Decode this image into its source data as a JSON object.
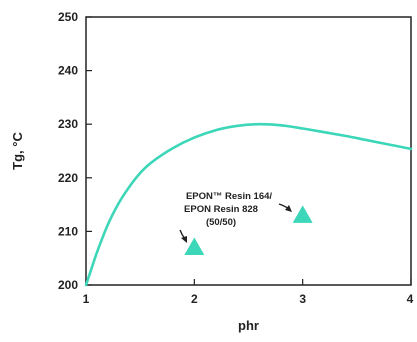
{
  "chart_data": {
    "type": "line",
    "xlabel": "phr",
    "ylabel": "Tg, °C",
    "xlim": [
      1,
      4
    ],
    "ylim": [
      200,
      250
    ],
    "x_ticks": [
      1,
      2,
      3,
      4
    ],
    "y_ticks": [
      200,
      210,
      220,
      230,
      240,
      250
    ],
    "grid": false,
    "colors": {
      "curve": "#3cd6b8",
      "marker": "#3cd6b8",
      "axis": "#222222"
    },
    "series": [
      {
        "type": "line",
        "x": [
          1.0,
          1.05,
          1.1,
          1.2,
          1.3,
          1.4,
          1.5,
          1.6,
          1.8,
          2.0,
          2.2,
          2.4,
          2.6,
          2.8,
          3.0,
          3.2,
          3.4,
          3.6,
          3.8,
          4.0
        ],
        "y": [
          200.0,
          203.0,
          206.0,
          211.2,
          215.2,
          218.3,
          220.9,
          222.8,
          225.5,
          227.5,
          228.9,
          229.7,
          230.0,
          229.8,
          229.2,
          228.5,
          227.8,
          227.0,
          226.2,
          225.4
        ]
      },
      {
        "type": "scatter",
        "marker": "triangle",
        "x": [
          2.0,
          3.0
        ],
        "y": [
          207.0,
          213.0
        ]
      }
    ],
    "annotations": [
      {
        "lines": [
          "EPON™ Resin 164/",
          "EPON Resin 828",
          "(50/50)"
        ]
      }
    ]
  }
}
